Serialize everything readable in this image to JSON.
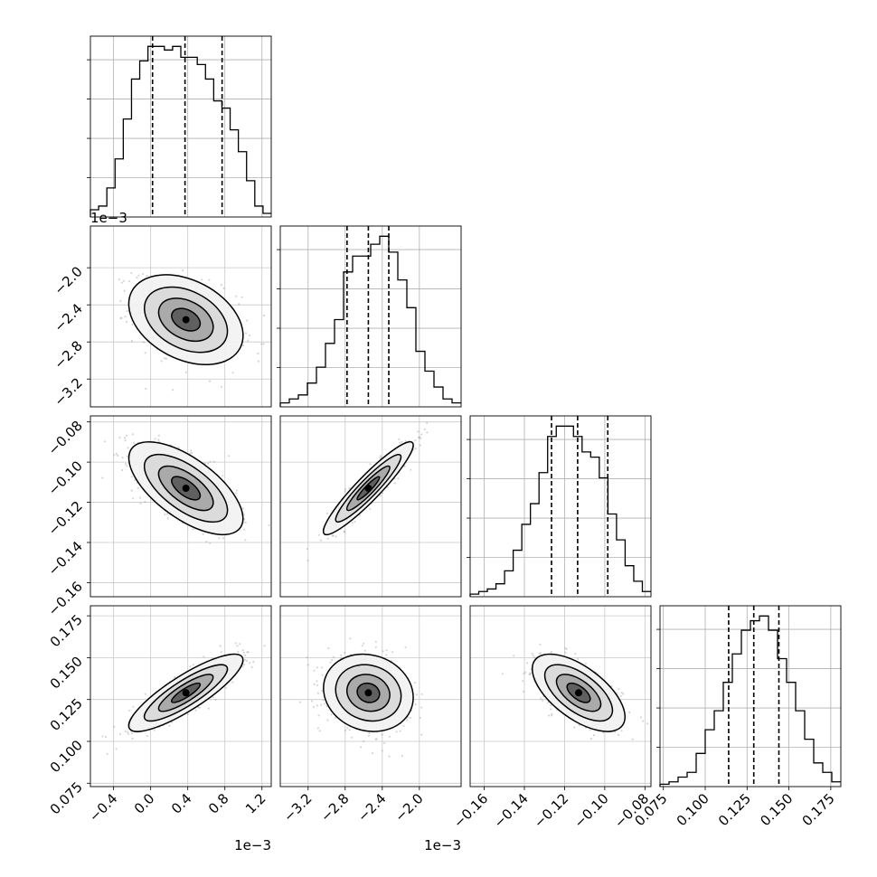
{
  "chart_data": {
    "type": "corner",
    "title": "",
    "params": [
      {
        "index": 0,
        "range": [
          -0.65,
          1.3
        ],
        "ticks": [
          -0.4,
          0.0,
          0.4,
          0.8,
          1.2
        ],
        "tick_labels": [
          "−0.4",
          "0.0",
          "0.4",
          "0.8",
          "1.2"
        ],
        "offset_label": "1e−3",
        "quantiles": [
          0.02,
          0.37,
          0.77
        ]
      },
      {
        "index": 1,
        "range": [
          -3.5,
          -1.55
        ],
        "ticks": [
          -3.2,
          -2.8,
          -2.4,
          -2.0
        ],
        "tick_labels": [
          "−3.2",
          "−2.8",
          "−2.4",
          "−2.0"
        ],
        "offset_label": "1e−3",
        "quantiles": [
          -2.78,
          -2.55,
          -2.33
        ]
      },
      {
        "index": 2,
        "range": [
          -0.167,
          -0.077
        ],
        "ticks": [
          -0.16,
          -0.14,
          -0.12,
          -0.1,
          -0.08
        ],
        "tick_labels": [
          "−0.16",
          "−0.14",
          "−0.12",
          "−0.10",
          "−0.08"
        ],
        "offset_label": "",
        "quantiles": [
          -0.1265,
          -0.1135,
          -0.0985
        ]
      },
      {
        "index": 3,
        "range": [
          0.073,
          0.181
        ],
        "ticks": [
          0.075,
          0.1,
          0.125,
          0.15,
          0.175
        ],
        "tick_labels": [
          "0.075",
          "0.100",
          "0.125",
          "0.150",
          "0.175"
        ],
        "offset_label": "",
        "quantiles": [
          0.114,
          0.129,
          0.144
        ]
      }
    ],
    "histograms": [
      {
        "param": 0,
        "counts": [
          2,
          3,
          8,
          16,
          27,
          38,
          43,
          47,
          47,
          46,
          47,
          44,
          44,
          42,
          38,
          32,
          30,
          24,
          18,
          10,
          3,
          1
        ]
      },
      {
        "param": 1,
        "counts": [
          1,
          2,
          3,
          6,
          10,
          16,
          22,
          34,
          38,
          38,
          41,
          43,
          39,
          32,
          25,
          14,
          9,
          5,
          2,
          1
        ]
      },
      {
        "param": 2,
        "counts": [
          0.5,
          1,
          1.5,
          2.5,
          5,
          9,
          14,
          18,
          24,
          31,
          33,
          33,
          31,
          28,
          27,
          23,
          16,
          11,
          6,
          3,
          1
        ]
      },
      {
        "param": 3,
        "counts": [
          0.5,
          1,
          2,
          3,
          7,
          12,
          16,
          22,
          28,
          33,
          35,
          36,
          33,
          27,
          22,
          16,
          10,
          5,
          3,
          1
        ]
      }
    ],
    "pairs": [
      {
        "x": 0,
        "y": 1,
        "center": [
          0.38,
          -2.56
        ],
        "sigma": [
          0.28,
          0.22
        ],
        "rho": -0.35
      },
      {
        "x": 0,
        "y": 2,
        "center": [
          0.38,
          -0.113
        ],
        "sigma": [
          0.28,
          0.0105
        ],
        "rho": -0.65
      },
      {
        "x": 1,
        "y": 2,
        "center": [
          -2.55,
          -0.113
        ],
        "sigma": [
          0.22,
          0.0105
        ],
        "rho": 0.93
      },
      {
        "x": 0,
        "y": 3,
        "center": [
          0.38,
          0.129
        ],
        "sigma": [
          0.28,
          0.0105
        ],
        "rho": 0.85
      },
      {
        "x": 1,
        "y": 3,
        "center": [
          -2.55,
          0.129
        ],
        "sigma": [
          0.22,
          0.0105
        ],
        "rho": -0.12
      },
      {
        "x": 2,
        "y": 3,
        "center": [
          -0.113,
          0.129
        ],
        "sigma": [
          0.0105,
          0.0105
        ],
        "rho": -0.62
      }
    ],
    "grid": true,
    "quantile_lines": "dashed"
  }
}
